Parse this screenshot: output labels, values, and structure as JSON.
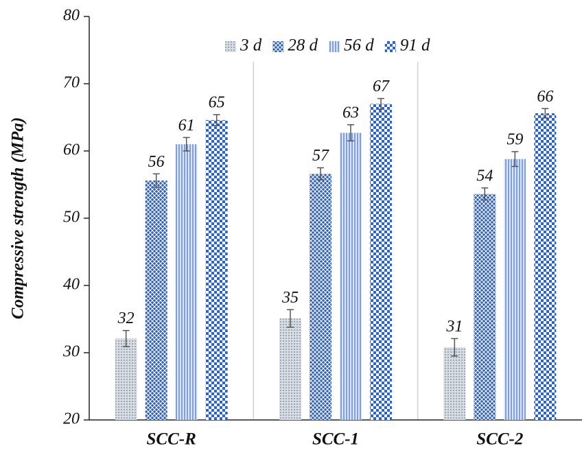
{
  "chart_data": {
    "type": "bar",
    "y_label": "Compressive strength (MPa)",
    "categories": [
      "SCC-R",
      "SCC-1",
      "SCC-2"
    ],
    "series": [
      {
        "name": "3 d",
        "color": "#9aa6b2",
        "values": [
          32.1,
          35.1,
          30.8
        ],
        "value_labels": [
          "32",
          "35",
          "31"
        ],
        "errors": [
          1.2,
          1.3,
          1.3
        ]
      },
      {
        "name": "28 d",
        "color": "#2f5fc0",
        "values": [
          55.6,
          56.6,
          53.6
        ],
        "value_labels": [
          "56",
          "57",
          "54"
        ],
        "errors": [
          1.0,
          0.9,
          0.9
        ]
      },
      {
        "name": "56 d",
        "color": "#7f9fdc",
        "values": [
          61.0,
          62.7,
          58.8
        ],
        "value_labels": [
          "61",
          "63",
          "59"
        ],
        "errors": [
          1.0,
          1.2,
          1.1
        ]
      },
      {
        "name": "91 d",
        "color": "#2a64cf",
        "values": [
          64.6,
          67.0,
          65.6
        ],
        "value_labels": [
          "65",
          "67",
          "66"
        ],
        "errors": [
          0.8,
          0.8,
          0.7
        ]
      }
    ],
    "ylim": [
      20,
      80
    ],
    "yticks": [
      20,
      30,
      40,
      50,
      60,
      70,
      80
    ]
  }
}
